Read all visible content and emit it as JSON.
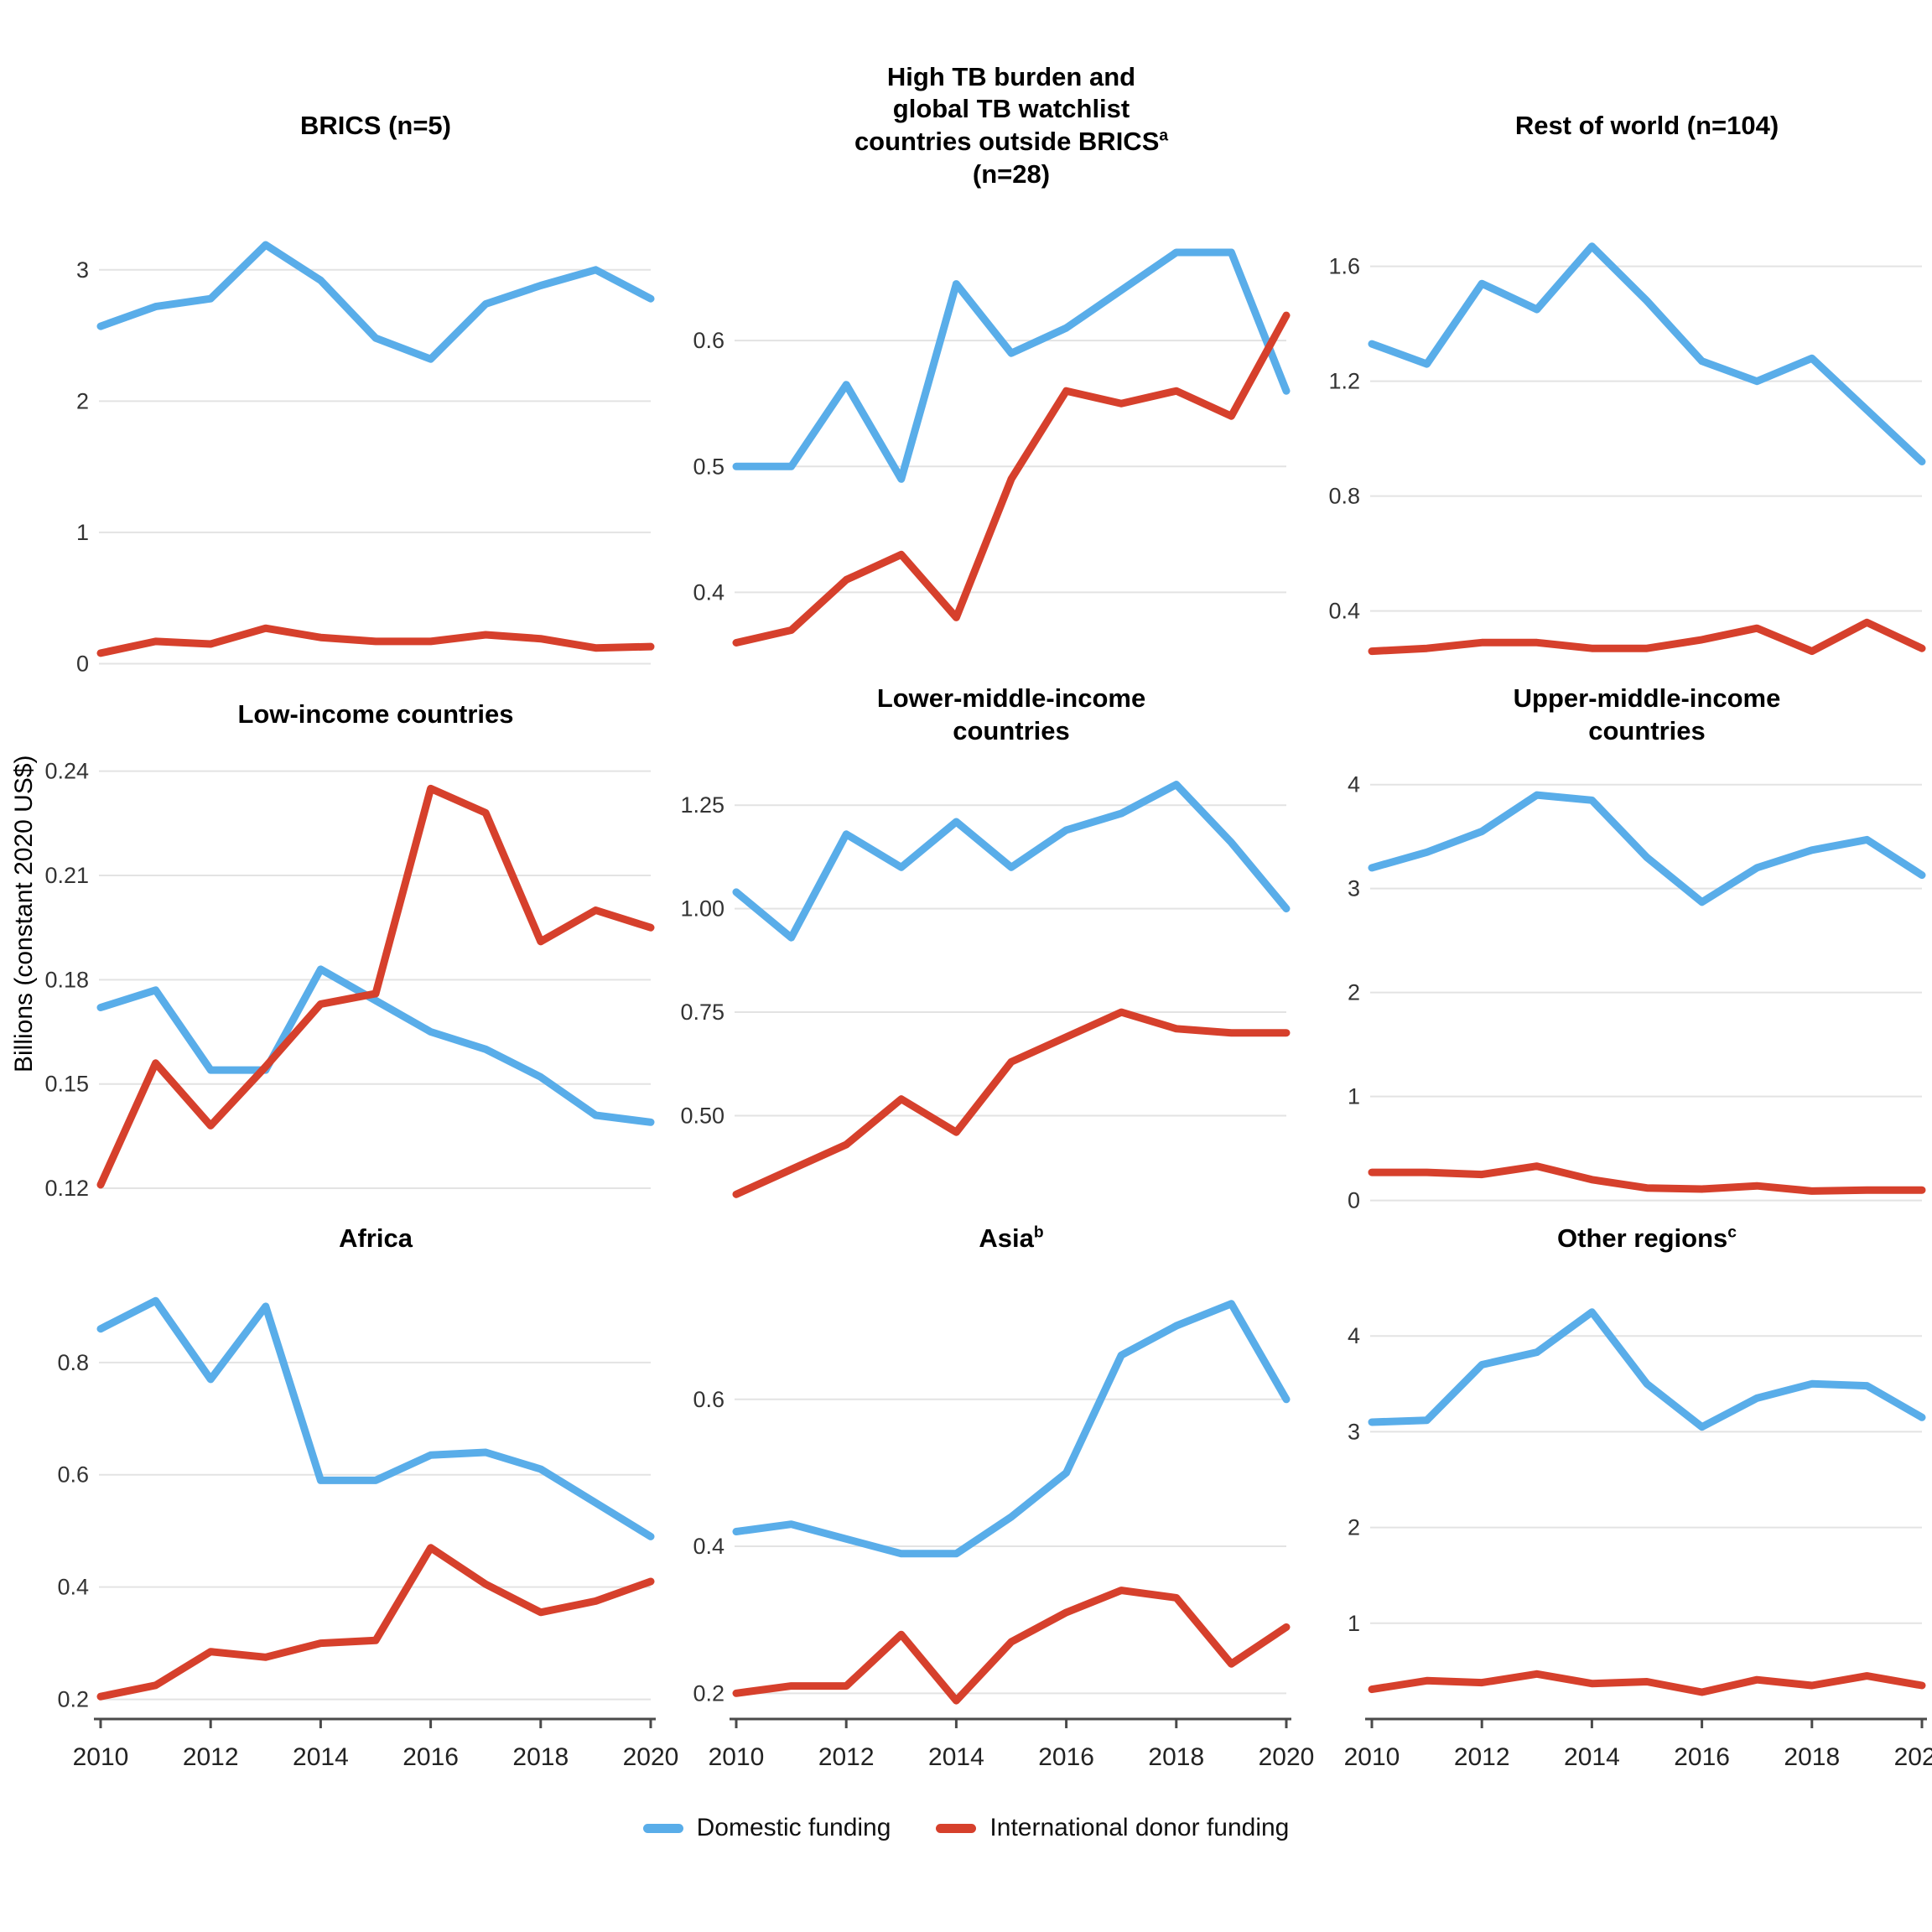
{
  "y_axis_label": "Billions (constant 2020 US$)",
  "legend": {
    "domestic": "Domestic funding",
    "donor": "International donor funding"
  },
  "colors": {
    "domestic": "#59ADE9",
    "donor": "#D6402C",
    "gridline": "#E3E3E3",
    "axis": "#4A4A4A",
    "tick_text": "#333333",
    "x_label_text": "#222222"
  },
  "chart_data": {
    "type": "line",
    "x": [
      2010,
      2011,
      2012,
      2013,
      2014,
      2015,
      2016,
      2017,
      2018,
      2019,
      2020
    ],
    "x_ticks": [
      2010,
      2012,
      2014,
      2016,
      2018,
      2020
    ],
    "series_names": [
      "Domestic funding",
      "International donor funding"
    ],
    "legend_position": "bottom-center",
    "grid": "horizontal-only",
    "panels": [
      {
        "id": "brics",
        "title_lines": [
          {
            "text": "BRICS (n=5)"
          }
        ],
        "y_ticks": [
          "0",
          "1",
          "2",
          "3"
        ],
        "y_range": [
          -0.08,
          3.42
        ],
        "show_x_axis": false,
        "series": {
          "domestic": [
            2.57,
            2.72,
            2.78,
            3.19,
            2.92,
            2.48,
            2.32,
            2.74,
            2.88,
            3.0,
            2.78
          ],
          "donor": [
            0.08,
            0.17,
            0.15,
            0.27,
            0.2,
            0.17,
            0.17,
            0.22,
            0.19,
            0.12,
            0.13
          ]
        }
      },
      {
        "id": "high-tb-watchlist",
        "title_lines": [
          {
            "text": "High TB burden and"
          },
          {
            "text": "global TB watchlist"
          },
          {
            "text": "countries outside BRICS",
            "sup": "a"
          },
          {
            "text": "(n=28)"
          }
        ],
        "y_ticks": [
          "0.4",
          "0.5",
          "0.6"
        ],
        "y_range": [
          0.335,
          0.7
        ],
        "show_x_axis": false,
        "series": {
          "domestic": [
            0.5,
            0.5,
            0.565,
            0.49,
            0.645,
            0.59,
            0.61,
            0.64,
            0.67,
            0.67,
            0.56
          ],
          "donor": [
            0.36,
            0.37,
            0.41,
            0.43,
            0.38,
            0.49,
            0.56,
            0.55,
            0.56,
            0.54,
            0.62
          ]
        }
      },
      {
        "id": "rest-of-world",
        "title_lines": [
          {
            "text": "Rest of world (n=104)"
          }
        ],
        "y_ticks": [
          "0.4",
          "0.8",
          "1.2",
          "1.6"
        ],
        "y_range": [
          0.18,
          1.78
        ],
        "show_x_axis": false,
        "series": {
          "domestic": [
            1.33,
            1.26,
            1.54,
            1.45,
            1.67,
            1.48,
            1.27,
            1.2,
            1.28,
            1.1,
            0.92
          ],
          "donor": [
            0.26,
            0.27,
            0.29,
            0.29,
            0.27,
            0.27,
            0.3,
            0.34,
            0.26,
            0.36,
            0.27
          ]
        }
      },
      {
        "id": "low-income",
        "title_lines": [
          {
            "text": "Low-income countries"
          }
        ],
        "y_ticks": [
          "0.12",
          "0.15",
          "0.18",
          "0.21",
          "0.24"
        ],
        "y_range": [
          0.1135,
          0.2445
        ],
        "show_x_axis": false,
        "series": {
          "domestic": [
            0.172,
            0.177,
            0.154,
            0.154,
            0.183,
            0.174,
            0.165,
            0.16,
            0.152,
            0.141,
            0.139
          ],
          "donor": [
            0.121,
            0.156,
            0.138,
            0.155,
            0.173,
            0.176,
            0.235,
            0.228,
            0.191,
            0.2,
            0.195
          ]
        }
      },
      {
        "id": "lower-middle-income",
        "title_lines": [
          {
            "text": "Lower-middle-income"
          },
          {
            "text": "countries"
          }
        ],
        "y_ticks": [
          "0.50",
          "0.75",
          "1.00",
          "1.25"
        ],
        "y_range": [
          0.27,
          1.37
        ],
        "show_x_axis": false,
        "series": {
          "domestic": [
            1.04,
            0.93,
            1.18,
            1.1,
            1.21,
            1.1,
            1.19,
            1.23,
            1.3,
            1.16,
            1.0
          ],
          "donor": [
            0.31,
            0.37,
            0.43,
            0.54,
            0.46,
            0.63,
            0.69,
            0.75,
            0.71,
            0.7,
            0.7
          ]
        }
      },
      {
        "id": "upper-middle-income",
        "title_lines": [
          {
            "text": "Upper-middle-income"
          },
          {
            "text": "countries"
          }
        ],
        "y_ticks": [
          "0",
          "1",
          "2",
          "3",
          "4"
        ],
        "y_range": [
          -0.1,
          4.28
        ],
        "show_x_axis": false,
        "series": {
          "domestic": [
            3.2,
            3.35,
            3.55,
            3.9,
            3.85,
            3.3,
            2.87,
            3.2,
            3.37,
            3.47,
            3.13
          ],
          "donor": [
            0.27,
            0.27,
            0.25,
            0.33,
            0.2,
            0.12,
            0.11,
            0.14,
            0.09,
            0.1,
            0.1
          ]
        }
      },
      {
        "id": "africa",
        "title_lines": [
          {
            "text": "Africa"
          }
        ],
        "y_ticks": [
          "0.2",
          "0.4",
          "0.6",
          "0.8"
        ],
        "y_range": [
          0.165,
          0.97
        ],
        "show_x_axis": true,
        "series": {
          "domestic": [
            0.86,
            0.91,
            0.77,
            0.9,
            0.59,
            0.59,
            0.635,
            0.64,
            0.61,
            0.55,
            0.49
          ],
          "donor": [
            0.205,
            0.225,
            0.285,
            0.275,
            0.3,
            0.305,
            0.47,
            0.405,
            0.355,
            0.375,
            0.41
          ]
        }
      },
      {
        "id": "asia",
        "title_lines": [
          {
            "text": "Asia",
            "sup": "b"
          }
        ],
        "y_ticks": [
          "0.2",
          "0.4",
          "0.6"
        ],
        "y_range": [
          0.165,
          0.78
        ],
        "show_x_axis": true,
        "series": {
          "domestic": [
            0.42,
            0.43,
            0.41,
            0.39,
            0.39,
            0.44,
            0.5,
            0.66,
            0.7,
            0.73,
            0.6
          ],
          "donor": [
            0.2,
            0.21,
            0.21,
            0.28,
            0.19,
            0.27,
            0.31,
            0.34,
            0.33,
            0.24,
            0.29
          ]
        }
      },
      {
        "id": "other-regions",
        "title_lines": [
          {
            "text": "Other regions",
            "sup": "c"
          }
        ],
        "y_ticks": [
          "1",
          "2",
          "3",
          "4"
        ],
        "y_range": [
          0.0,
          4.72
        ],
        "show_x_axis": true,
        "series": {
          "domestic": [
            3.1,
            3.12,
            3.7,
            3.83,
            4.25,
            3.5,
            3.05,
            3.35,
            3.5,
            3.48,
            3.15
          ],
          "donor": [
            0.31,
            0.4,
            0.38,
            0.47,
            0.37,
            0.39,
            0.28,
            0.41,
            0.35,
            0.45,
            0.35
          ]
        }
      }
    ]
  }
}
